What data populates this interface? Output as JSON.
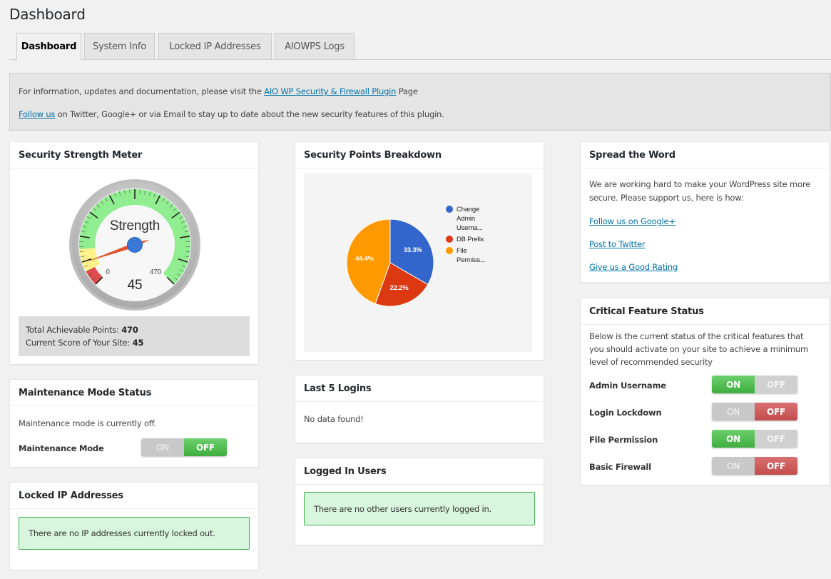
{
  "page": {
    "title": "Dashboard"
  },
  "tabs": [
    {
      "label": "Dashboard",
      "active": true
    },
    {
      "label": "System Info",
      "active": false
    },
    {
      "label": "Locked IP Addresses",
      "active": false
    },
    {
      "label": "AIOWPS Logs",
      "active": false
    }
  ],
  "info": {
    "line1_pre": "For information, updates and documentation, please visit the ",
    "line1_link": "AIO WP Security & Firewall Plugin",
    "line1_post": " Page",
    "line2_link": "Follow us",
    "line2_post": " on Twitter, Google+ or via Email to stay up to date about the new security features of this plugin."
  },
  "strength_meter": {
    "title": "Security Strength Meter",
    "gauge_label": "Strength",
    "min": 0,
    "max": 470,
    "min_label": "0",
    "max_label": "470",
    "value": 45,
    "value_label": "45",
    "total_label": "Total Achievable Points: ",
    "total_value": "470",
    "current_label": "Current Score of Your Site: ",
    "current_value": "45",
    "colors": {
      "green": "#90ee90",
      "yellow": "#fff28a",
      "red": "#e04c4c",
      "needle": "#e0532f",
      "hub": "#3a78d8"
    }
  },
  "maintenance": {
    "title": "Maintenance Mode Status",
    "text": "Maintenance mode is currently off.",
    "label": "Maintenance Mode",
    "on": "ON",
    "off": "OFF",
    "state": "off"
  },
  "locked_ip": {
    "title": "Locked IP Addresses",
    "message": "There are no IP addresses currently locked out."
  },
  "points_breakdown": {
    "title": "Security Points Breakdown"
  },
  "chart_data": {
    "type": "pie",
    "categories": [
      "Change Admin Userna...",
      "DB Prefix",
      "File Permiss..."
    ],
    "values": [
      33.3,
      22.2,
      44.4
    ],
    "value_labels": [
      "33.3%",
      "22.2%",
      "44.4%"
    ],
    "colors": [
      "#3366cc",
      "#dc3912",
      "#ff9900"
    ],
    "legend_lines": [
      [
        "Change",
        "Admin",
        "Userna..."
      ],
      [
        "DB Prefix"
      ],
      [
        "File",
        "Permiss..."
      ]
    ],
    "legend": "right",
    "title": ""
  },
  "last_logins": {
    "title": "Last 5 Logins",
    "text": "No data found!"
  },
  "logged_in": {
    "title": "Logged In Users",
    "message": "There are no other users currently logged in."
  },
  "spread": {
    "title": "Spread the Word",
    "text": "We are working hard to make your WordPress site more secure. Please support us, here is how:",
    "links": [
      "Follow us on Google+",
      "Post to Twitter",
      "Give us a Good Rating"
    ]
  },
  "critical": {
    "title": "Critical Feature Status",
    "text": "Below is the current status of the critical features that you should activate on your site to achieve a minimum level of recommended security",
    "on": "ON",
    "off": "OFF",
    "features": [
      {
        "label": "Admin Username",
        "state": "on"
      },
      {
        "label": "Login Lockdown",
        "state": "off"
      },
      {
        "label": "File Permission",
        "state": "on"
      },
      {
        "label": "Basic Firewall",
        "state": "off"
      }
    ]
  }
}
